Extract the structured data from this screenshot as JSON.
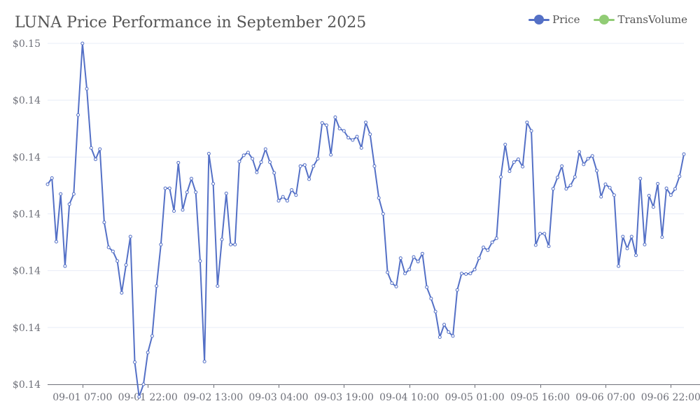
{
  "chart_data": {
    "type": "line",
    "title": "LUNA Price Performance in September 2025",
    "legend": [
      {
        "name": "Price",
        "color": "#5470c6"
      },
      {
        "name": "TransVolume",
        "color": "#91cc75"
      }
    ],
    "legend_position": "top-right",
    "grid": true,
    "ylim": [
      0.1398,
      0.1458
    ],
    "y_ticks": [
      {
        "value": 0.1398,
        "label": "$0.14"
      },
      {
        "value": 0.1408,
        "label": "$0.14"
      },
      {
        "value": 0.1418,
        "label": "$0.14"
      },
      {
        "value": 0.1428,
        "label": "$0.14"
      },
      {
        "value": 0.1438,
        "label": "$0.14"
      },
      {
        "value": 0.1448,
        "label": "$0.14"
      },
      {
        "value": 0.1458,
        "label": "$0.15"
      }
    ],
    "x_ticks": [
      {
        "index": 8,
        "label": "09-01 07:00"
      },
      {
        "index": 23,
        "label": "09-01 22:00"
      },
      {
        "index": 38,
        "label": "09-02 13:00"
      },
      {
        "index": 53,
        "label": "09-03 04:00"
      },
      {
        "index": 68,
        "label": "09-03 19:00"
      },
      {
        "index": 83,
        "label": "09-04 10:00"
      },
      {
        "index": 98,
        "label": "09-05 01:00"
      },
      {
        "index": 113,
        "label": "09-05 16:00"
      },
      {
        "index": 128,
        "label": "09-06 07:00"
      },
      {
        "index": 143,
        "label": "09-06 22:00"
      }
    ],
    "series": [
      {
        "name": "Price",
        "color": "#5470c6",
        "values": [
          0.14332,
          0.14343,
          0.14231,
          0.14315,
          0.14188,
          0.14297,
          0.14315,
          0.14454,
          0.1458,
          0.145,
          0.14396,
          0.14376,
          0.14394,
          0.14265,
          0.14221,
          0.14214,
          0.14197,
          0.14141,
          0.1419,
          0.1424,
          0.14019,
          0.13958,
          0.1398,
          0.14036,
          0.14065,
          0.14153,
          0.14226,
          0.14325,
          0.14325,
          0.14285,
          0.1437,
          0.14287,
          0.14318,
          0.14342,
          0.14318,
          0.14197,
          0.1402,
          0.14386,
          0.14333,
          0.14153,
          0.14235,
          0.14316,
          0.14226,
          0.14226,
          0.14372,
          0.14383,
          0.14388,
          0.14377,
          0.14353,
          0.14371,
          0.14394,
          0.14371,
          0.14352,
          0.14303,
          0.1431,
          0.14303,
          0.14322,
          0.14313,
          0.14364,
          0.14366,
          0.14341,
          0.14364,
          0.14377,
          0.1444,
          0.14436,
          0.14384,
          0.1445,
          0.1443,
          0.14426,
          0.14414,
          0.1441,
          0.14416,
          0.14396,
          0.14441,
          0.1442,
          0.14364,
          0.14308,
          0.1428,
          0.14177,
          0.14158,
          0.14152,
          0.14202,
          0.14175,
          0.14182,
          0.14204,
          0.14196,
          0.1421,
          0.14151,
          0.14131,
          0.14108,
          0.14063,
          0.14085,
          0.14072,
          0.14065,
          0.14146,
          0.14175,
          0.14174,
          0.14175,
          0.14182,
          0.14202,
          0.14221,
          0.14216,
          0.1423,
          0.14237,
          0.14345,
          0.14402,
          0.14355,
          0.14371,
          0.14376,
          0.14363,
          0.14441,
          0.14426,
          0.14225,
          0.14245,
          0.14245,
          0.14223,
          0.14324,
          0.14344,
          0.14364,
          0.14324,
          0.1433,
          0.14345,
          0.14389,
          0.14367,
          0.14377,
          0.14382,
          0.14356,
          0.1431,
          0.14332,
          0.14326,
          0.14313,
          0.14188,
          0.1424,
          0.14219,
          0.1424,
          0.14207,
          0.14342,
          0.14226,
          0.14312,
          0.14292,
          0.14333,
          0.14239,
          0.14325,
          0.14313,
          0.14324,
          0.14346,
          0.14385
        ]
      },
      {
        "name": "TransVolume",
        "color": "#91cc75",
        "values": []
      }
    ]
  }
}
